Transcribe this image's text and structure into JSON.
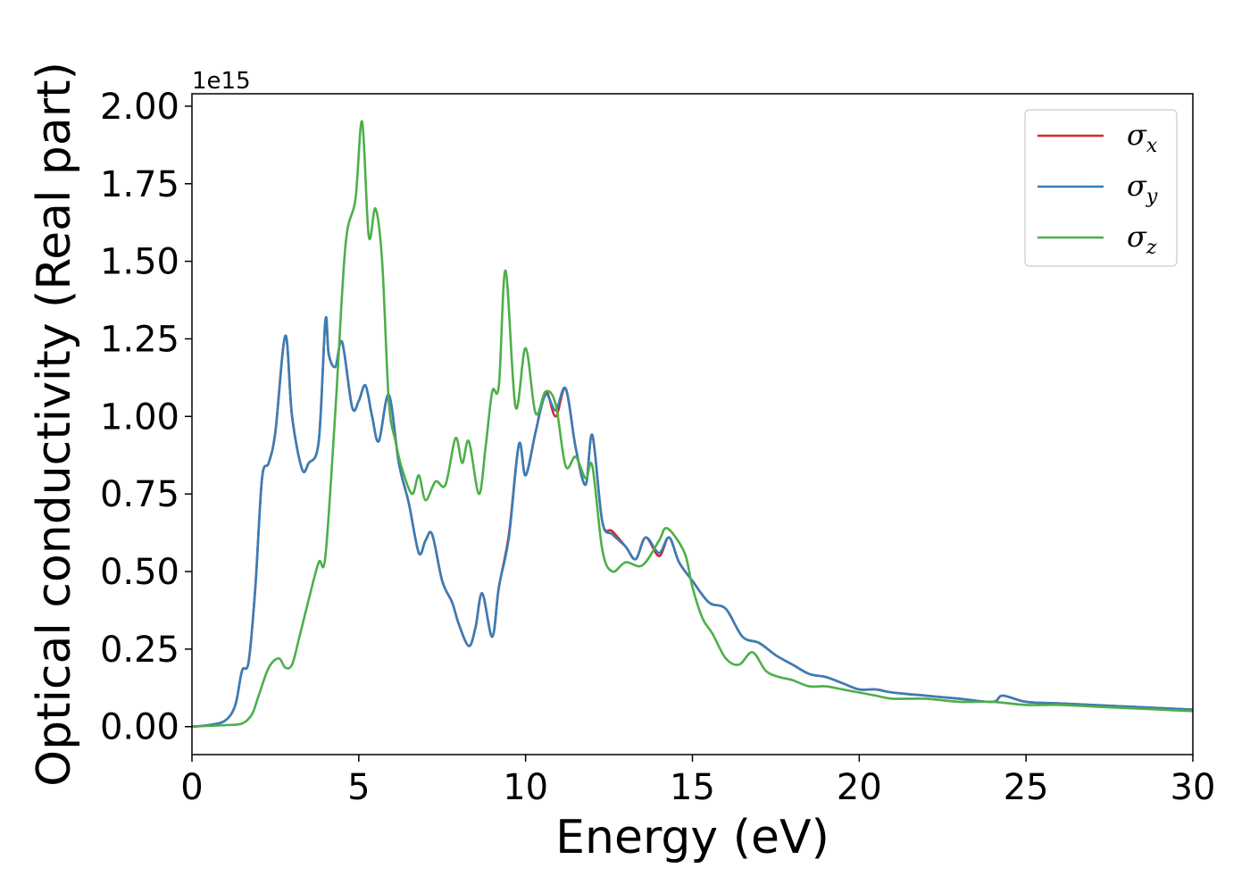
{
  "chart_data": {
    "type": "line",
    "title": "",
    "xlabel": "Energy (eV)",
    "ylabel": "Optical conductivity (Real part)",
    "y_offset_label": "1e15",
    "xlim": [
      0,
      30
    ],
    "ylim": [
      -0.09,
      2.04
    ],
    "xticks": [
      0,
      5,
      10,
      15,
      20,
      25,
      30
    ],
    "xtick_labels": [
      "0",
      "5",
      "10",
      "15",
      "20",
      "25",
      "30"
    ],
    "yticks": [
      0,
      0.25,
      0.5,
      0.75,
      1.0,
      1.25,
      1.5,
      1.75,
      2.0
    ],
    "ytick_labels": [
      "0.00",
      "0.25",
      "0.50",
      "0.75",
      "1.00",
      "1.25",
      "1.50",
      "1.75",
      "2.00"
    ],
    "grid": false,
    "legend_position": "top-right",
    "series": [
      {
        "name": "σx",
        "name_base": "σ",
        "name_sub": "x",
        "color": "#d62728",
        "x": [
          0,
          0.5,
          1.0,
          1.3,
          1.5,
          1.7,
          1.9,
          2.1,
          2.3,
          2.5,
          2.8,
          3.0,
          3.3,
          3.5,
          3.8,
          4.0,
          4.1,
          4.3,
          4.5,
          4.8,
          5.0,
          5.2,
          5.4,
          5.6,
          5.9,
          6.2,
          6.5,
          6.8,
          7.0,
          7.2,
          7.5,
          7.8,
          8.0,
          8.3,
          8.5,
          8.7,
          9.0,
          9.2,
          9.5,
          9.8,
          10.0,
          10.3,
          10.6,
          10.9,
          11.2,
          11.5,
          11.8,
          12.0,
          12.3,
          12.6,
          13.0,
          13.3,
          13.6,
          14.0,
          14.3,
          14.6,
          15.0,
          15.5,
          16.0,
          16.5,
          17.0,
          17.5,
          18.0,
          18.5,
          19.0,
          19.5,
          20.0,
          20.5,
          21.0,
          22.0,
          23.0,
          24.0,
          24.3,
          25.0,
          26.0,
          27.0,
          28.0,
          29.0,
          30.0
        ],
        "y": [
          0,
          0.005,
          0.02,
          0.07,
          0.18,
          0.21,
          0.45,
          0.8,
          0.85,
          0.95,
          1.26,
          1.0,
          0.83,
          0.85,
          0.92,
          1.31,
          1.2,
          1.16,
          1.24,
          1.03,
          1.05,
          1.1,
          1.0,
          0.92,
          1.07,
          0.85,
          0.72,
          0.56,
          0.6,
          0.62,
          0.47,
          0.4,
          0.33,
          0.26,
          0.32,
          0.43,
          0.29,
          0.45,
          0.62,
          0.91,
          0.81,
          0.95,
          1.08,
          1.0,
          1.09,
          0.9,
          0.78,
          0.94,
          0.66,
          0.63,
          0.58,
          0.54,
          0.61,
          0.55,
          0.61,
          0.53,
          0.47,
          0.4,
          0.38,
          0.29,
          0.27,
          0.23,
          0.2,
          0.17,
          0.16,
          0.14,
          0.12,
          0.12,
          0.11,
          0.1,
          0.09,
          0.08,
          0.1,
          0.08,
          0.075,
          0.07,
          0.065,
          0.06,
          0.055
        ]
      },
      {
        "name": "σy",
        "name_base": "σ",
        "name_sub": "y",
        "color": "#377eb8",
        "x": [
          0,
          0.5,
          1.0,
          1.3,
          1.5,
          1.7,
          1.9,
          2.1,
          2.3,
          2.5,
          2.8,
          3.0,
          3.3,
          3.5,
          3.8,
          4.0,
          4.1,
          4.3,
          4.5,
          4.8,
          5.0,
          5.2,
          5.4,
          5.6,
          5.9,
          6.2,
          6.5,
          6.8,
          7.0,
          7.2,
          7.5,
          7.8,
          8.0,
          8.3,
          8.5,
          8.7,
          9.0,
          9.2,
          9.5,
          9.8,
          10.0,
          10.3,
          10.6,
          10.9,
          11.2,
          11.5,
          11.8,
          12.0,
          12.3,
          12.6,
          13.0,
          13.3,
          13.6,
          14.0,
          14.3,
          14.6,
          15.0,
          15.5,
          16.0,
          16.5,
          17.0,
          17.5,
          18.0,
          18.5,
          19.0,
          19.5,
          20.0,
          20.5,
          21.0,
          22.0,
          23.0,
          24.0,
          24.3,
          25.0,
          26.0,
          27.0,
          28.0,
          29.0,
          30.0
        ],
        "y": [
          0,
          0.005,
          0.02,
          0.07,
          0.18,
          0.21,
          0.45,
          0.8,
          0.85,
          0.95,
          1.26,
          1.0,
          0.83,
          0.85,
          0.92,
          1.31,
          1.2,
          1.16,
          1.24,
          1.03,
          1.05,
          1.1,
          1.0,
          0.92,
          1.07,
          0.85,
          0.72,
          0.56,
          0.6,
          0.62,
          0.47,
          0.4,
          0.33,
          0.26,
          0.32,
          0.43,
          0.29,
          0.45,
          0.61,
          0.91,
          0.81,
          0.95,
          1.07,
          1.02,
          1.09,
          0.9,
          0.78,
          0.94,
          0.66,
          0.62,
          0.58,
          0.54,
          0.61,
          0.56,
          0.61,
          0.53,
          0.47,
          0.4,
          0.38,
          0.29,
          0.27,
          0.23,
          0.2,
          0.17,
          0.16,
          0.14,
          0.12,
          0.12,
          0.11,
          0.1,
          0.09,
          0.08,
          0.1,
          0.08,
          0.075,
          0.07,
          0.065,
          0.06,
          0.055
        ]
      },
      {
        "name": "σz",
        "name_base": "σ",
        "name_sub": "z",
        "color": "#4daf4a",
        "x": [
          0,
          1.0,
          1.5,
          1.8,
          2.0,
          2.3,
          2.6,
          2.8,
          3.0,
          3.2,
          3.5,
          3.8,
          4.0,
          4.3,
          4.6,
          4.9,
          5.1,
          5.3,
          5.5,
          5.7,
          5.9,
          6.1,
          6.3,
          6.6,
          6.8,
          7.0,
          7.3,
          7.6,
          7.9,
          8.1,
          8.3,
          8.6,
          8.8,
          9.0,
          9.2,
          9.4,
          9.7,
          10.0,
          10.3,
          10.6,
          10.9,
          11.2,
          11.5,
          11.8,
          12.0,
          12.3,
          12.6,
          13.0,
          13.5,
          14.0,
          14.2,
          14.5,
          14.8,
          15.0,
          15.3,
          15.6,
          16.0,
          16.4,
          16.8,
          17.2,
          17.6,
          18.0,
          18.5,
          19.0,
          19.5,
          20.0,
          20.5,
          21.0,
          22.0,
          23.0,
          24.0,
          25.0,
          26.0,
          27.0,
          28.0,
          29.0,
          30.0
        ],
        "y": [
          0,
          0.005,
          0.01,
          0.04,
          0.1,
          0.19,
          0.22,
          0.19,
          0.2,
          0.28,
          0.41,
          0.53,
          0.55,
          1.02,
          1.55,
          1.7,
          1.95,
          1.58,
          1.67,
          1.5,
          1.05,
          0.92,
          0.83,
          0.75,
          0.81,
          0.73,
          0.79,
          0.78,
          0.93,
          0.85,
          0.92,
          0.75,
          0.9,
          1.08,
          1.1,
          1.47,
          1.03,
          1.22,
          1.01,
          1.08,
          1.04,
          0.84,
          0.87,
          0.8,
          0.84,
          0.57,
          0.5,
          0.53,
          0.52,
          0.6,
          0.64,
          0.61,
          0.55,
          0.45,
          0.35,
          0.3,
          0.22,
          0.2,
          0.24,
          0.18,
          0.16,
          0.15,
          0.13,
          0.13,
          0.12,
          0.11,
          0.1,
          0.09,
          0.09,
          0.08,
          0.08,
          0.07,
          0.07,
          0.065,
          0.06,
          0.055,
          0.05
        ]
      }
    ]
  }
}
